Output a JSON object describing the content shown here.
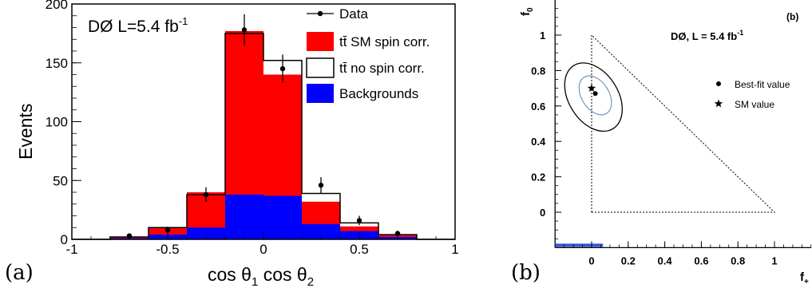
{
  "panel_a": {
    "tag": "(a)",
    "chart_data": {
      "type": "bar",
      "bin_edges": [
        -1.0,
        -0.8,
        -0.6,
        -0.4,
        -0.2,
        0.0,
        0.2,
        0.4,
        0.6,
        0.8,
        1.0
      ],
      "series": [
        {
          "name": "tt̄ SM spin corr.",
          "values": [
            0,
            2,
            10,
            40,
            177,
            140,
            32,
            11,
            4,
            0
          ]
        },
        {
          "name": "tt̄ no spin corr.",
          "values": [
            0,
            2,
            10,
            38,
            175,
            152,
            39,
            14,
            4,
            0
          ]
        },
        {
          "name": "Backgrounds",
          "values": [
            0,
            1,
            4,
            10,
            38,
            37,
            13,
            7,
            2,
            0
          ]
        }
      ],
      "data_points": {
        "name": "Data",
        "x": [
          -0.7,
          -0.5,
          -0.3,
          -0.1,
          0.1,
          0.3,
          0.5,
          0.7
        ],
        "y": [
          3,
          8,
          38,
          178,
          145,
          46,
          16,
          5
        ],
        "err": [
          1.7,
          2.8,
          6.2,
          13.3,
          12.0,
          6.8,
          4.0,
          2.2
        ]
      },
      "annotation": "DØ L=5.4 fb",
      "annotation_sup": "-1",
      "xlabel": "cos θ",
      "xlabel_sub1": "1",
      "xlabel_mid": " cos θ",
      "xlabel_sub2": "2",
      "ylabel": "Events",
      "xlim": [
        -1,
        1
      ],
      "ylim": [
        0,
        200
      ],
      "xticks": [
        -1,
        -0.5,
        0,
        0.5,
        1
      ],
      "xtick_labels": [
        "-1",
        "-0.5",
        "0",
        "0.5",
        "1"
      ],
      "yticks": [
        0,
        50,
        100,
        150,
        200
      ],
      "ytick_labels": [
        "0",
        "50",
        "100",
        "150",
        "200"
      ],
      "legend": [
        {
          "label": "Data",
          "kind": "data"
        },
        {
          "label": "tt̄ SM spin corr.",
          "kind": "fill",
          "color": "#ff0000"
        },
        {
          "label": "tt̄ no spin corr.",
          "kind": "outline",
          "color": "#000000"
        },
        {
          "label": "Backgrounds",
          "kind": "fill",
          "color": "#0000ff"
        }
      ],
      "legend_position": "top-right",
      "colors": {
        "sm": "#ff0000",
        "bkg": "#0000ff",
        "outline": "#000000"
      }
    }
  },
  "panel_b": {
    "tag": "(b)",
    "chart_data": {
      "type": "scatter",
      "corner_label": "(b)",
      "annotation": "DØ, L = 5.4 fb",
      "annotation_sup": "-1",
      "xlabel": "f",
      "xlabel_sub": "+",
      "ylabel": "f",
      "ylabel_sub": "0",
      "xlim": [
        -0.2,
        1.2
      ],
      "ylim": [
        -0.2,
        1.2
      ],
      "xticks": [
        0,
        0.2,
        0.4,
        0.6,
        0.8,
        1
      ],
      "xtick_labels": [
        "0",
        "0.2",
        "0.4",
        "0.6",
        "0.8",
        "1"
      ],
      "yticks": [
        0,
        0.2,
        0.4,
        0.6,
        0.8,
        1
      ],
      "ytick_labels": [
        "0",
        "0.2",
        "0.4",
        "0.6",
        "0.8",
        "1"
      ],
      "best_fit": {
        "x": 0.02,
        "y": 0.67,
        "label": "Best-fit value"
      },
      "sm_value": {
        "x": 0.0,
        "y": 0.7,
        "label": "SM value"
      },
      "physical_region": [
        [
          0,
          0
        ],
        [
          1,
          0
        ],
        [
          0,
          1
        ]
      ],
      "contours": [
        {
          "cx": 0.02,
          "cy": 0.66,
          "rx": 0.075,
          "ry": 0.12,
          "color": "#7f9fbf"
        },
        {
          "cx": 0.01,
          "cy": 0.65,
          "rx": 0.135,
          "ry": 0.21,
          "color": "#000000"
        }
      ]
    }
  }
}
